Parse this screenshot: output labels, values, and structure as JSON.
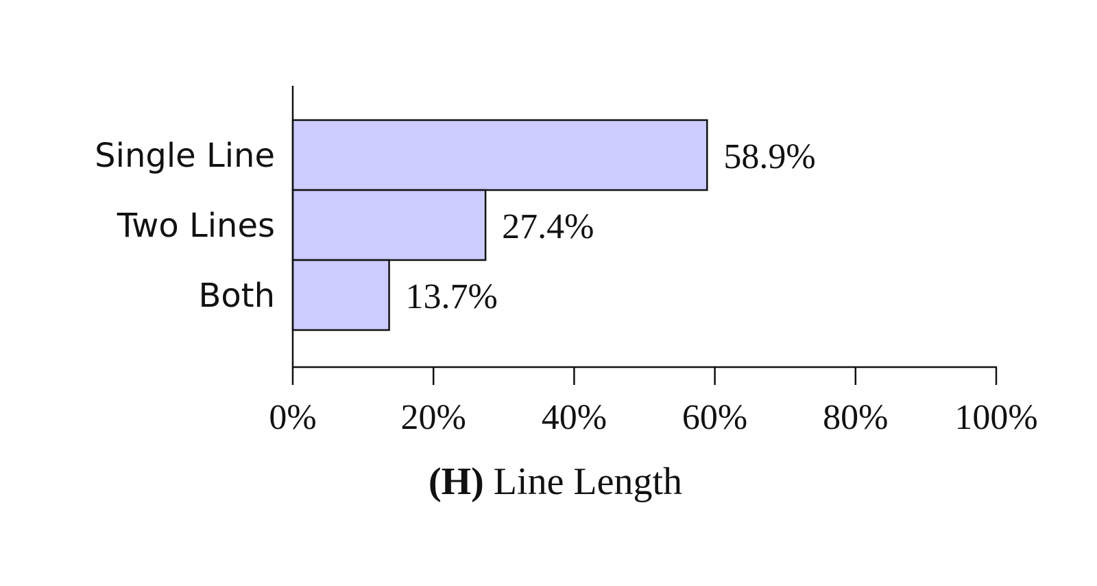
{
  "chart_data": {
    "type": "bar",
    "orientation": "horizontal",
    "categories": [
      "Single Line",
      "Two Lines",
      "Both"
    ],
    "values": [
      58.9,
      27.4,
      13.7
    ],
    "value_labels": [
      "58.9%",
      "27.4%",
      "13.7%"
    ],
    "xlim": [
      0,
      100
    ],
    "xticks": [
      0,
      20,
      40,
      60,
      80,
      100
    ],
    "xtick_labels": [
      "0%",
      "20%",
      "40%",
      "60%",
      "80%",
      "100%"
    ],
    "caption_prefix": "(H)",
    "caption_text": " Line Length",
    "bar_color": "#ccccff",
    "bar_edge_color": "#111111",
    "grid": false
  }
}
